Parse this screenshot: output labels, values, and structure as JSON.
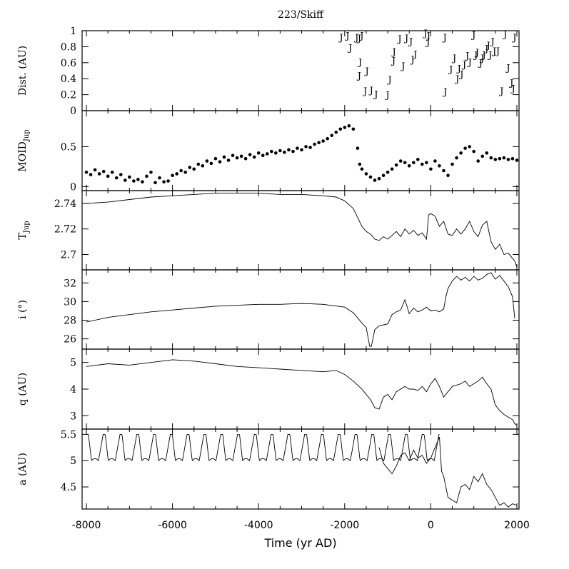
{
  "chart_data": {
    "type": "multi-panel",
    "title": "223/Skiff",
    "xlabel": "Time (yr AD)",
    "xlim": [
      -8100,
      2050
    ],
    "xticks": [
      -8000,
      -6000,
      -4000,
      -2000,
      0,
      2000
    ],
    "xtick_labels": [
      "-8000",
      "-6000",
      "-4000",
      "-2000",
      "0",
      "2000"
    ],
    "panels": [
      {
        "id": "dist",
        "type": "scatter",
        "ylabel": "Dist. (AU)",
        "ylim": [
          0,
          1
        ],
        "yticks": [
          0,
          0.2,
          0.4,
          0.6,
          0.8,
          1
        ],
        "ytick_labels": [
          "0",
          "0.2",
          "0.4",
          "0.6",
          "0.8",
          "1"
        ],
        "marker_glyph": "J",
        "x": [
          -2080,
          -1930,
          -1870,
          -1720,
          -1660,
          -1600,
          -1640,
          -1660,
          -1480,
          -1520,
          -1380,
          -1270,
          -1000,
          -950,
          -850,
          -860,
          -720,
          -640,
          -560,
          -460,
          -420,
          -360,
          -120,
          -50,
          -60,
          340,
          330,
          470,
          550,
          620,
          660,
          720,
          780,
          850,
          910,
          1000,
          1050,
          1080,
          1160,
          1200,
          1240,
          1300,
          1340,
          1380,
          1440,
          1480,
          1560,
          1650,
          1730,
          1800,
          1880,
          1920,
          1950
        ],
        "y": [
          0.93,
          0.95,
          0.8,
          0.93,
          0.92,
          0.95,
          0.62,
          0.45,
          0.51,
          0.26,
          0.27,
          0.22,
          0.21,
          0.4,
          0.75,
          0.64,
          0.91,
          0.57,
          0.92,
          0.88,
          0.65,
          0.72,
          0.98,
          0.95,
          0.87,
          0.25,
          0.93,
          0.53,
          0.67,
          0.41,
          0.54,
          0.47,
          0.59,
          0.7,
          0.62,
          0.96,
          0.71,
          0.74,
          0.61,
          0.67,
          0.71,
          0.79,
          0.83,
          0.71,
          0.88,
          0.76,
          0.76,
          0.26,
          0.97,
          0.55,
          0.36,
          0.29,
          0.93
        ]
      },
      {
        "id": "moid",
        "type": "scatter",
        "ylabel": "MOID",
        "ylabel_sub": "Jup",
        "ylim": [
          -0.05,
          0.95
        ],
        "yticks": [
          0,
          0.5
        ],
        "ytick_labels": [
          "0",
          "0.5"
        ],
        "x": [
          -8000,
          -7900,
          -7800,
          -7700,
          -7600,
          -7500,
          -7400,
          -7300,
          -7200,
          -7100,
          -7000,
          -6900,
          -6800,
          -6700,
          -6600,
          -6500,
          -6400,
          -6300,
          -6200,
          -6100,
          -6000,
          -5900,
          -5800,
          -5700,
          -5600,
          -5500,
          -5400,
          -5300,
          -5200,
          -5100,
          -5000,
          -4900,
          -4800,
          -4700,
          -4600,
          -4500,
          -4400,
          -4300,
          -4200,
          -4100,
          -4000,
          -3900,
          -3800,
          -3700,
          -3600,
          -3500,
          -3400,
          -3300,
          -3200,
          -3100,
          -3000,
          -2900,
          -2800,
          -2700,
          -2600,
          -2500,
          -2400,
          -2300,
          -2200,
          -2100,
          -2000,
          -1900,
          -1800,
          -1700,
          -1650,
          -1600,
          -1500,
          -1400,
          -1300,
          -1200,
          -1100,
          -1000,
          -900,
          -800,
          -700,
          -600,
          -500,
          -400,
          -300,
          -200,
          -100,
          0,
          100,
          200,
          300,
          400,
          500,
          600,
          700,
          800,
          900,
          1000,
          1100,
          1200,
          1300,
          1400,
          1500,
          1600,
          1700,
          1800,
          1900,
          2000
        ],
        "y": [
          0.18,
          0.15,
          0.21,
          0.16,
          0.19,
          0.13,
          0.18,
          0.11,
          0.15,
          0.08,
          0.12,
          0.07,
          0.09,
          0.06,
          0.13,
          0.18,
          0.05,
          0.11,
          0.06,
          0.07,
          0.14,
          0.16,
          0.2,
          0.18,
          0.24,
          0.22,
          0.28,
          0.26,
          0.32,
          0.29,
          0.35,
          0.31,
          0.37,
          0.33,
          0.39,
          0.36,
          0.38,
          0.35,
          0.4,
          0.37,
          0.42,
          0.39,
          0.41,
          0.44,
          0.42,
          0.45,
          0.43,
          0.46,
          0.44,
          0.48,
          0.46,
          0.5,
          0.49,
          0.53,
          0.55,
          0.57,
          0.6,
          0.64,
          0.68,
          0.72,
          0.74,
          0.76,
          0.72,
          0.48,
          0.28,
          0.22,
          0.16,
          0.12,
          0.08,
          0.1,
          0.14,
          0.18,
          0.22,
          0.27,
          0.32,
          0.3,
          0.26,
          0.3,
          0.34,
          0.28,
          0.3,
          0.22,
          0.32,
          0.26,
          0.2,
          0.14,
          0.28,
          0.36,
          0.42,
          0.48,
          0.5,
          0.44,
          0.32,
          0.38,
          0.42,
          0.36,
          0.34,
          0.35,
          0.36,
          0.34,
          0.35,
          0.33
        ]
      },
      {
        "id": "tjup",
        "type": "line",
        "ylabel": "T",
        "ylabel_sub": "Jup",
        "ylim": [
          2.688,
          2.75
        ],
        "yticks": [
          2.7,
          2.72,
          2.74
        ],
        "ytick_labels": [
          "2.7",
          "2.72",
          "2.74"
        ],
        "x": [
          -8000,
          -7500,
          -7000,
          -6500,
          -6000,
          -5500,
          -5000,
          -4500,
          -4000,
          -3500,
          -3000,
          -2500,
          -2200,
          -2000,
          -1800,
          -1700,
          -1600,
          -1500,
          -1400,
          -1300,
          -1200,
          -1100,
          -1000,
          -900,
          -800,
          -700,
          -600,
          -500,
          -400,
          -300,
          -200,
          -100,
          -50,
          0,
          100,
          200,
          300,
          400,
          500,
          600,
          700,
          800,
          900,
          1000,
          1100,
          1200,
          1300,
          1400,
          1500,
          1600,
          1700,
          1800,
          1900,
          1950,
          2000
        ],
        "y": [
          2.74,
          2.741,
          2.743,
          2.745,
          2.746,
          2.747,
          2.748,
          2.748,
          2.748,
          2.747,
          2.747,
          2.746,
          2.745,
          2.742,
          2.736,
          2.729,
          2.722,
          2.718,
          2.716,
          2.712,
          2.711,
          2.714,
          2.712,
          2.715,
          2.718,
          2.714,
          2.72,
          2.716,
          2.719,
          2.715,
          2.717,
          2.712,
          2.731,
          2.732,
          2.73,
          2.722,
          2.726,
          2.716,
          2.715,
          2.72,
          2.716,
          2.72,
          2.726,
          2.718,
          2.714,
          2.723,
          2.726,
          2.71,
          2.704,
          2.708,
          2.7,
          2.701,
          2.697,
          2.695,
          2.69
        ]
      },
      {
        "id": "incl",
        "type": "line",
        "ylabel": "i (°)",
        "ylim": [
          24.9,
          33.4
        ],
        "yticks": [
          26,
          28,
          30,
          32
        ],
        "ytick_labels": [
          "26",
          "28",
          "30",
          "32"
        ],
        "x": [
          -8000,
          -7500,
          -7000,
          -6500,
          -6000,
          -5500,
          -5000,
          -4500,
          -4000,
          -3500,
          -3000,
          -2500,
          -2000,
          -1800,
          -1600,
          -1500,
          -1420,
          -1380,
          -1300,
          -1200,
          -1000,
          -900,
          -800,
          -700,
          -600,
          -500,
          -400,
          -300,
          -200,
          -100,
          0,
          100,
          200,
          300,
          350,
          400,
          500,
          600,
          700,
          800,
          900,
          1000,
          1100,
          1200,
          1300,
          1400,
          1500,
          1600,
          1700,
          1800,
          1900,
          1950
        ],
        "y": [
          27.8,
          28.3,
          28.6,
          28.9,
          29.1,
          29.3,
          29.5,
          29.6,
          29.7,
          29.7,
          29.8,
          29.7,
          29.4,
          28.8,
          27.7,
          27.2,
          25.2,
          25.2,
          27.0,
          27.4,
          27.6,
          28.6,
          28.9,
          29.1,
          30.2,
          28.7,
          29.3,
          28.9,
          29.1,
          29.4,
          29.0,
          29.1,
          28.9,
          29.2,
          30.5,
          31.4,
          32.2,
          32.7,
          32.3,
          32.6,
          32.2,
          32.7,
          32.3,
          32.5,
          32.9,
          33.1,
          32.4,
          32.8,
          32.2,
          31.6,
          30.5,
          28.2
        ]
      },
      {
        "id": "perihelion",
        "type": "line",
        "ylabel": "q (AU)",
        "ylim": [
          2.5,
          5.5
        ],
        "yticks": [
          3,
          4,
          5
        ],
        "ytick_labels": [
          "3",
          "4",
          "5"
        ],
        "x": [
          -8000,
          -7500,
          -7000,
          -6500,
          -6000,
          -5500,
          -5000,
          -4500,
          -4000,
          -3500,
          -3000,
          -2500,
          -2200,
          -2000,
          -1800,
          -1600,
          -1400,
          -1300,
          -1200,
          -1100,
          -1000,
          -900,
          -800,
          -700,
          -600,
          -500,
          -400,
          -300,
          -200,
          -100,
          0,
          100,
          200,
          300,
          400,
          500,
          600,
          700,
          800,
          900,
          1000,
          1100,
          1200,
          1300,
          1400,
          1500,
          1600,
          1700,
          1800,
          1900,
          1950,
          2000
        ],
        "y": [
          4.85,
          4.95,
          4.9,
          5.0,
          5.1,
          5.05,
          4.95,
          4.85,
          4.8,
          4.75,
          4.7,
          4.65,
          4.7,
          4.55,
          4.3,
          4.0,
          3.6,
          3.3,
          3.25,
          3.7,
          3.8,
          3.6,
          3.9,
          4.0,
          4.1,
          4.0,
          4.0,
          3.95,
          4.1,
          3.9,
          4.2,
          4.4,
          4.1,
          3.7,
          3.9,
          4.1,
          4.15,
          4.2,
          4.3,
          4.1,
          4.2,
          4.3,
          4.45,
          4.2,
          4.0,
          3.4,
          3.2,
          3.05,
          2.95,
          2.85,
          2.7,
          2.65
        ]
      },
      {
        "id": "semimajor",
        "type": "line",
        "ylabel": "a (AU)",
        "ylim": [
          4.08,
          5.6
        ],
        "yticks": [
          4.5,
          5,
          5.5
        ],
        "ytick_labels": [
          "4.5",
          "5",
          "5.5"
        ],
        "oscillation": {
          "x_start": -8000,
          "x_end": 200,
          "period_years": 390,
          "min": 5.0,
          "max": 5.5
        },
        "x": [
          -1200,
          -1100,
          -1000,
          -900,
          -800,
          -700,
          -600,
          -500,
          -400,
          -300,
          -200,
          -100,
          0,
          200,
          250,
          300,
          350,
          400,
          500,
          600,
          700,
          800,
          900,
          1000,
          1100,
          1200,
          1300,
          1400,
          1500,
          1600,
          1700,
          1800,
          1900,
          2000
        ],
        "y": [
          5.25,
          4.95,
          4.85,
          4.75,
          4.9,
          5.1,
          5.15,
          5.0,
          5.2,
          5.05,
          5.1,
          4.95,
          5.05,
          5.45,
          4.8,
          4.7,
          4.5,
          4.3,
          4.25,
          4.2,
          4.5,
          4.55,
          4.45,
          4.7,
          4.6,
          4.75,
          4.55,
          4.45,
          4.3,
          4.15,
          4.2,
          4.12,
          4.18,
          4.15
        ]
      }
    ]
  }
}
